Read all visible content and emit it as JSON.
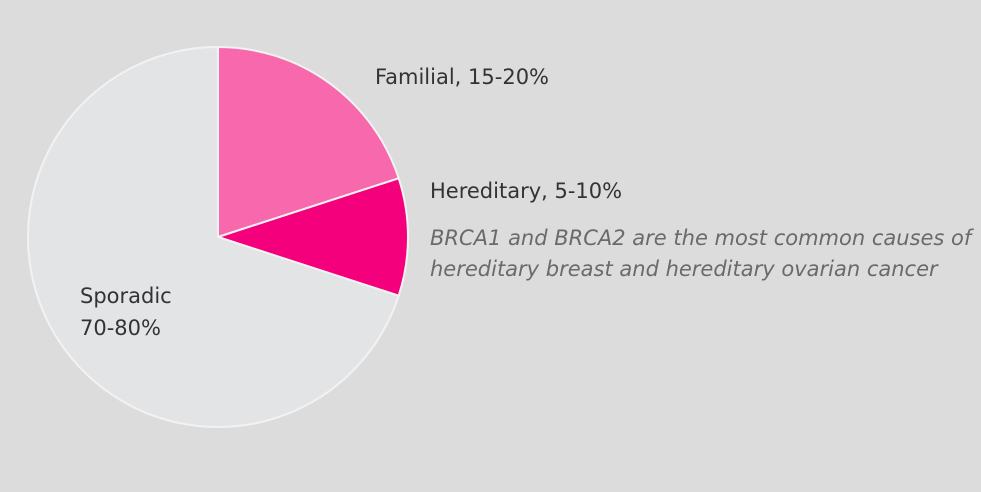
{
  "chart_data": {
    "type": "pie",
    "labels": [
      [
        "Familial, 15-20%"
      ],
      [
        "Hereditary, 5-10%"
      ],
      [
        "Sporadic",
        "70-80%"
      ]
    ],
    "values": [
      20,
      10,
      70
    ],
    "colors": [
      "#f768ad",
      "#f5007c",
      "#e3e4e6"
    ],
    "annotation": [
      "BRCA1 and BRCA2 are the most common causes of",
      "hereditary breast and hereditary ovarian cancer"
    ]
  }
}
